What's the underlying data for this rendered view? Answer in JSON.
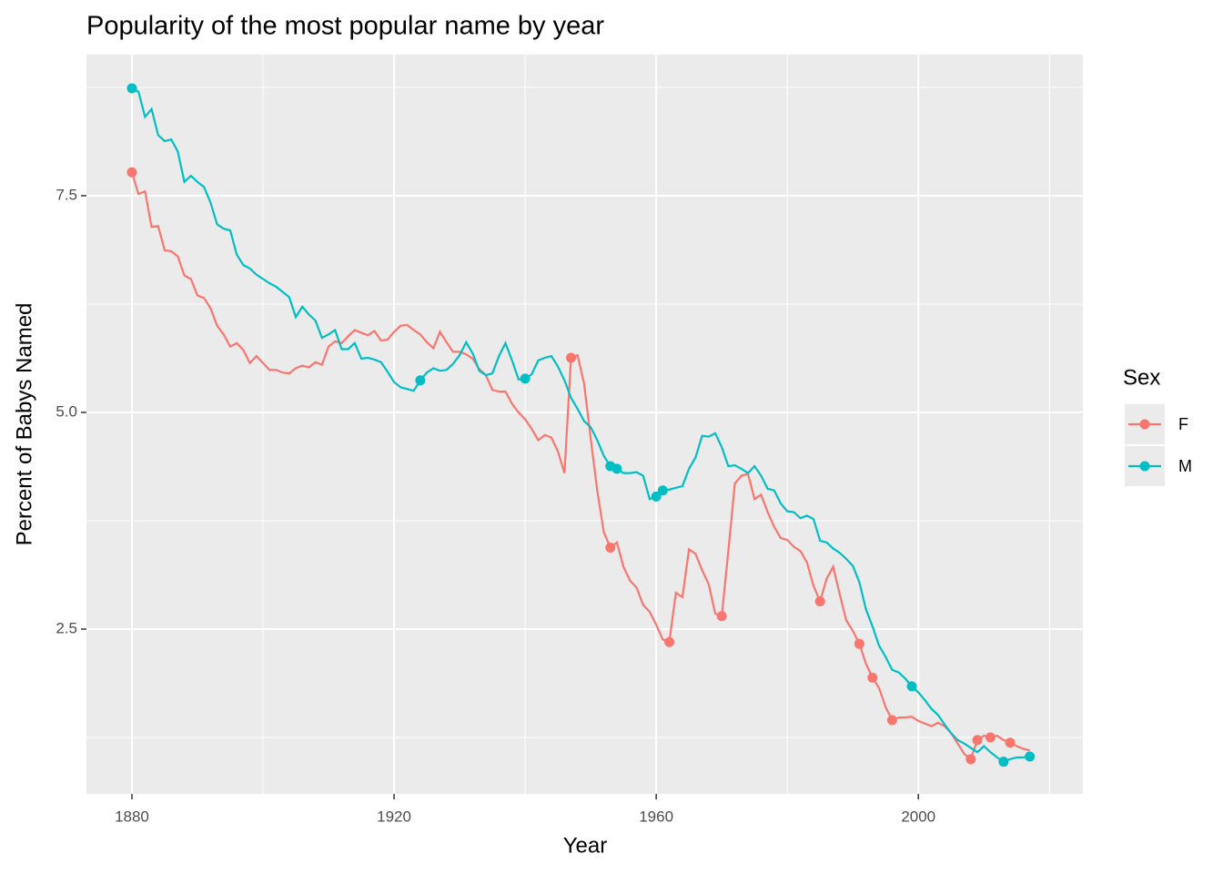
{
  "chart_data": {
    "type": "line",
    "title": "Popularity of the most popular name by year",
    "x_label": "Year",
    "y_label": "Percent of Babys Named",
    "legend_title": "Sex",
    "legend": "right",
    "grid": true,
    "xlim": [
      1873.06,
      2025.1
    ],
    "ylim": [
      0.599,
      9.128
    ],
    "xticks": [
      1880,
      1920,
      1960,
      2000
    ],
    "xminor": [
      1900,
      1940,
      1980,
      2020
    ],
    "yticks": [
      {
        "value": 2.5,
        "label": "2.5"
      },
      {
        "value": 5,
        "label": "5.0"
      },
      {
        "value": 7.5,
        "label": "7.5"
      }
    ],
    "yminor": [
      1.25,
      3.75,
      6.25,
      8.75
    ],
    "x": [
      1880,
      1881,
      1882,
      1883,
      1884,
      1885,
      1886,
      1887,
      1888,
      1889,
      1890,
      1891,
      1892,
      1893,
      1894,
      1895,
      1896,
      1897,
      1898,
      1899,
      1900,
      1901,
      1902,
      1903,
      1904,
      1905,
      1906,
      1907,
      1908,
      1909,
      1910,
      1911,
      1912,
      1913,
      1914,
      1915,
      1916,
      1917,
      1918,
      1919,
      1920,
      1921,
      1922,
      1923,
      1924,
      1925,
      1926,
      1927,
      1928,
      1929,
      1930,
      1931,
      1932,
      1933,
      1934,
      1935,
      1936,
      1937,
      1938,
      1939,
      1940,
      1941,
      1942,
      1943,
      1944,
      1945,
      1946,
      1947,
      1948,
      1949,
      1950,
      1951,
      1952,
      1953,
      1954,
      1955,
      1956,
      1957,
      1958,
      1959,
      1960,
      1961,
      1962,
      1963,
      1964,
      1965,
      1966,
      1967,
      1968,
      1969,
      1970,
      1971,
      1972,
      1973,
      1974,
      1975,
      1976,
      1977,
      1978,
      1979,
      1980,
      1981,
      1982,
      1983,
      1984,
      1985,
      1986,
      1987,
      1988,
      1989,
      1990,
      1991,
      1992,
      1993,
      1994,
      1995,
      1996,
      1997,
      1998,
      1999,
      2000,
      2001,
      2002,
      2003,
      2004,
      2005,
      2006,
      2007,
      2008,
      2009,
      2010,
      2011,
      2012,
      2013,
      2014,
      2015,
      2016,
      2017
    ],
    "series": [
      {
        "name": "F",
        "color": "#F8766D",
        "values": [
          7.77,
          7.52,
          7.55,
          7.14,
          7.15,
          6.87,
          6.86,
          6.8,
          6.58,
          6.54,
          6.35,
          6.32,
          6.2,
          6.0,
          5.9,
          5.76,
          5.8,
          5.72,
          5.57,
          5.65,
          5.57,
          5.49,
          5.49,
          5.46,
          5.45,
          5.51,
          5.54,
          5.52,
          5.58,
          5.55,
          5.76,
          5.82,
          5.8,
          5.88,
          5.95,
          5.92,
          5.89,
          5.94,
          5.83,
          5.84,
          5.93,
          6.0,
          6.01,
          5.95,
          5.9,
          5.81,
          5.74,
          5.93,
          5.81,
          5.7,
          5.7,
          5.67,
          5.62,
          5.5,
          5.43,
          5.26,
          5.24,
          5.24,
          5.1,
          5.0,
          4.92,
          4.81,
          4.68,
          4.74,
          4.71,
          4.55,
          4.3,
          5.63,
          5.66,
          5.33,
          4.7,
          4.1,
          3.62,
          3.44,
          3.5,
          3.22,
          3.06,
          2.98,
          2.78,
          2.7,
          2.55,
          2.38,
          2.35,
          2.92,
          2.87,
          3.42,
          3.37,
          3.18,
          3.02,
          2.68,
          2.65,
          3.4,
          4.18,
          4.27,
          4.29,
          4.0,
          4.05,
          3.85,
          3.68,
          3.55,
          3.53,
          3.45,
          3.4,
          3.27,
          3.0,
          2.82,
          3.08,
          3.22,
          2.9,
          2.6,
          2.48,
          2.33,
          2.1,
          1.94,
          1.82,
          1.6,
          1.45,
          1.48,
          1.48,
          1.49,
          1.44,
          1.41,
          1.38,
          1.42,
          1.38,
          1.3,
          1.18,
          1.06,
          1.0,
          1.22,
          1.27,
          1.25,
          1.27,
          1.22,
          1.19,
          1.15,
          1.12,
          1.1
        ],
        "marker_x": [
          1880,
          1947,
          1953,
          1962,
          1970,
          1985,
          1991,
          1993,
          1996,
          2008,
          2009,
          2011,
          2014
        ]
      },
      {
        "name": "M",
        "color": "#00BFC4",
        "values": [
          8.74,
          8.7,
          8.41,
          8.5,
          8.2,
          8.13,
          8.15,
          8.01,
          7.66,
          7.73,
          7.66,
          7.6,
          7.42,
          7.17,
          7.12,
          7.1,
          6.82,
          6.7,
          6.66,
          6.59,
          6.54,
          6.49,
          6.45,
          6.39,
          6.33,
          6.1,
          6.22,
          6.13,
          6.06,
          5.86,
          5.9,
          5.95,
          5.73,
          5.73,
          5.8,
          5.62,
          5.63,
          5.61,
          5.58,
          5.47,
          5.35,
          5.29,
          5.27,
          5.25,
          5.37,
          5.46,
          5.51,
          5.48,
          5.49,
          5.56,
          5.66,
          5.81,
          5.68,
          5.48,
          5.43,
          5.45,
          5.65,
          5.8,
          5.6,
          5.38,
          5.39,
          5.44,
          5.6,
          5.63,
          5.65,
          5.53,
          5.37,
          5.17,
          5.04,
          4.9,
          4.83,
          4.68,
          4.5,
          4.38,
          4.35,
          4.3,
          4.3,
          4.31,
          4.27,
          4.0,
          4.03,
          4.1,
          4.11,
          4.13,
          4.15,
          4.35,
          4.48,
          4.73,
          4.72,
          4.76,
          4.6,
          4.38,
          4.39,
          4.35,
          4.3,
          4.38,
          4.27,
          4.12,
          4.1,
          3.95,
          3.86,
          3.85,
          3.78,
          3.81,
          3.77,
          3.52,
          3.5,
          3.43,
          3.38,
          3.31,
          3.23,
          3.04,
          2.73,
          2.53,
          2.31,
          2.18,
          2.03,
          2.0,
          1.93,
          1.84,
          1.77,
          1.68,
          1.58,
          1.51,
          1.4,
          1.3,
          1.22,
          1.18,
          1.13,
          1.08,
          1.15,
          1.08,
          1.02,
          0.97,
          1.0,
          1.02,
          1.02,
          1.03
        ],
        "marker_x": [
          1880,
          1924,
          1940,
          1953,
          1954,
          1960,
          1961,
          1999,
          2013,
          2017
        ]
      }
    ]
  }
}
